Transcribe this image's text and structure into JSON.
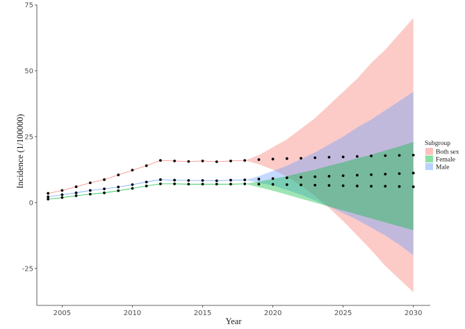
{
  "chart_data": {
    "type": "line",
    "xlabel": "Year",
    "ylabel": "Incidence (1/100000)",
    "xlim": [
      2003.2,
      2031.2
    ],
    "ylim": [
      -39,
      75
    ],
    "xticks": [
      2005,
      2010,
      2015,
      2020,
      2025,
      2030
    ],
    "yticks": [
      -25,
      0,
      25,
      50,
      75
    ],
    "grid": false,
    "legend": {
      "title": "Subgroup",
      "placement": "right",
      "entries": [
        {
          "name": "Both sex",
          "color": "#F8766D"
        },
        {
          "name": "Female",
          "color": "#00BA38"
        },
        {
          "name": "Male",
          "color": "#619CFF"
        }
      ]
    },
    "series": [
      {
        "name": "Both sex",
        "color": "#F8766D",
        "observed_x": [
          2004,
          2005,
          2006,
          2007,
          2008,
          2009,
          2010,
          2011,
          2012,
          2013,
          2014,
          2015,
          2016,
          2017,
          2018
        ],
        "observed_y": [
          3.5,
          4.6,
          6.0,
          7.5,
          8.7,
          10.5,
          12.3,
          14.0,
          16.0,
          15.8,
          15.6,
          15.8,
          15.5,
          15.8,
          16.0
        ],
        "forecast_x": [
          2019,
          2020,
          2021,
          2022,
          2023,
          2024,
          2025,
          2026,
          2027,
          2028,
          2029,
          2030
        ],
        "forecast_y": [
          16.3,
          16.5,
          16.7,
          16.8,
          17.0,
          17.2,
          17.3,
          17.5,
          17.7,
          17.8,
          17.9,
          18.0
        ],
        "band_lower": [
          14.5,
          12.5,
          9.8,
          6.5,
          2.5,
          -2.0,
          -7.0,
          -12.5,
          -18.0,
          -24.0,
          -29.0,
          -34.0
        ],
        "band_upper": [
          18.0,
          21.0,
          24.0,
          28.0,
          32.0,
          37.0,
          42.0,
          47.0,
          53.0,
          58.0,
          64.0,
          70.0
        ]
      },
      {
        "name": "Male",
        "color": "#619CFF",
        "observed_x": [
          2004,
          2005,
          2006,
          2007,
          2008,
          2009,
          2010,
          2011,
          2012,
          2013,
          2014,
          2015,
          2016,
          2017,
          2018
        ],
        "observed_y": [
          2.2,
          3.0,
          3.7,
          4.6,
          5.2,
          5.9,
          6.8,
          7.8,
          8.7,
          8.5,
          8.4,
          8.4,
          8.3,
          8.5,
          8.6
        ],
        "forecast_x": [
          2019,
          2020,
          2021,
          2022,
          2023,
          2024,
          2025,
          2026,
          2027,
          2028,
          2029,
          2030
        ],
        "forecast_y": [
          8.9,
          9.1,
          9.4,
          9.6,
          9.8,
          10.0,
          10.2,
          10.4,
          10.6,
          10.8,
          11.0,
          11.2
        ],
        "band_lower": [
          7.5,
          6.5,
          4.8,
          3.0,
          0.8,
          -1.5,
          -4.0,
          -6.5,
          -9.5,
          -12.5,
          -16.0,
          -20.0
        ],
        "band_upper": [
          10.0,
          12.0,
          14.0,
          16.5,
          19.0,
          22.0,
          25.0,
          28.5,
          31.5,
          35.0,
          38.5,
          42.0
        ]
      },
      {
        "name": "Female",
        "color": "#00BA38",
        "observed_x": [
          2004,
          2005,
          2006,
          2007,
          2008,
          2009,
          2010,
          2011,
          2012,
          2013,
          2014,
          2015,
          2016,
          2017,
          2018
        ],
        "observed_y": [
          1.3,
          1.9,
          2.6,
          3.2,
          3.7,
          4.5,
          5.4,
          6.3,
          7.1,
          7.1,
          7.0,
          7.0,
          7.0,
          7.0,
          7.1
        ],
        "forecast_x": [
          2019,
          2020,
          2021,
          2022,
          2023,
          2024,
          2025,
          2026,
          2027,
          2028,
          2029,
          2030
        ],
        "forecast_y": [
          7.0,
          6.9,
          6.8,
          6.7,
          6.6,
          6.5,
          6.4,
          6.3,
          6.2,
          6.2,
          6.1,
          6.0
        ],
        "band_lower": [
          5.8,
          4.5,
          3.0,
          1.5,
          0.0,
          -1.5,
          -3.0,
          -4.5,
          -6.0,
          -7.5,
          -9.0,
          -10.5
        ],
        "band_upper": [
          8.0,
          9.0,
          10.0,
          11.3,
          12.5,
          14.0,
          15.3,
          16.8,
          18.2,
          19.8,
          21.3,
          23.0
        ]
      }
    ]
  }
}
